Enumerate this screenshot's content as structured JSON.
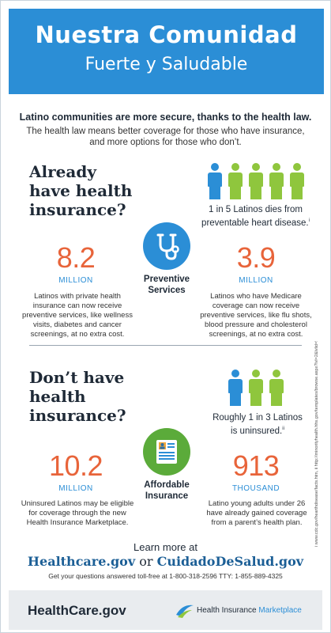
{
  "header": {
    "title": "Nuestra Comunidad",
    "subtitle": "Fuerte y Saludable"
  },
  "intro": {
    "headline": "Latino communities are more secure, thanks to the health law.",
    "line1": "The health law means better coverage for those who have insurance,",
    "line2": "and more options for those who don’t."
  },
  "section_insured": {
    "heading_l1": "Already",
    "heading_l2": "have health",
    "heading_l3": "insurance?",
    "people_icons": {
      "highlighted": 1,
      "total": 5,
      "highlight_color": "#2b8ed6",
      "other_color": "#8fc63d"
    },
    "stat_caption_l1": "1 in 5 Latinos dies from",
    "stat_caption_l2": "preventable heart disease.",
    "stat_caption_ref": "i",
    "center_icon": "stethoscope-icon",
    "center_label_l1": "Preventive",
    "center_label_l2": "Services",
    "left_number": "8.2",
    "left_unit": "MILLION",
    "left_desc_l1": "Latinos with private health",
    "left_desc_l2": "insurance can now receive",
    "left_desc_l3": "preventive services, like wellness",
    "left_desc_l4": "visits, diabetes and cancer",
    "left_desc_l5": "screenings, at no extra cost.",
    "right_number": "3.9",
    "right_unit": "MILLION",
    "right_desc_l1": "Latinos who have Medicare",
    "right_desc_l2": "coverage can now receive",
    "right_desc_l3": "preventive services, like flu shots,",
    "right_desc_l4": "blood pressure and cholesterol",
    "right_desc_l5": "screenings, at no extra cost."
  },
  "section_uninsured": {
    "heading_l1": "Don’t have",
    "heading_l2": "health",
    "heading_l3": "insurance?",
    "people_icons": {
      "highlighted": 1,
      "total": 3,
      "highlight_color": "#2b8ed6",
      "other_color": "#8fc63d"
    },
    "stat_caption_l1": "Roughly 1 in 3 Latinos",
    "stat_caption_l2": "is uninsured.",
    "stat_caption_ref": "ii",
    "center_icon": "insurance-form-icon",
    "center_label_l1": "Affordable",
    "center_label_l2": "Insurance",
    "left_number": "10.2",
    "left_unit": "MILLION",
    "left_desc_l1": "Uninsured Latinos may be eligible",
    "left_desc_l2": "for coverage through the new",
    "left_desc_l3": "Health Insurance Marketplace.",
    "right_number": "913",
    "right_unit": "THOUSAND",
    "right_desc_l1": "Latino young adults under 26",
    "right_desc_l2": "have already gained coverage",
    "right_desc_l3": "from a parent’s health plan."
  },
  "learn_more": {
    "line1": "Learn more at",
    "link1": "Healthcare.gov",
    "or": "or",
    "link2": "CuidadoDeSalud.gov",
    "phone_line": "Get your questions answered toll-free at 1-800-318-2596 TTY: 1-855-889-4325"
  },
  "footer": {
    "logo_left_a": "Health",
    "logo_left_b": "Care",
    "logo_left_c": ".gov",
    "logo_right_a": "Health Insurance ",
    "logo_right_b": "Marketplace"
  },
  "side_sources": "i www.cdc.gov/hearthdisease/facts.htm, ii http://minorityhealth.hhs.gov/templates/browse.aspx?lvl=2&lvlid=54"
}
